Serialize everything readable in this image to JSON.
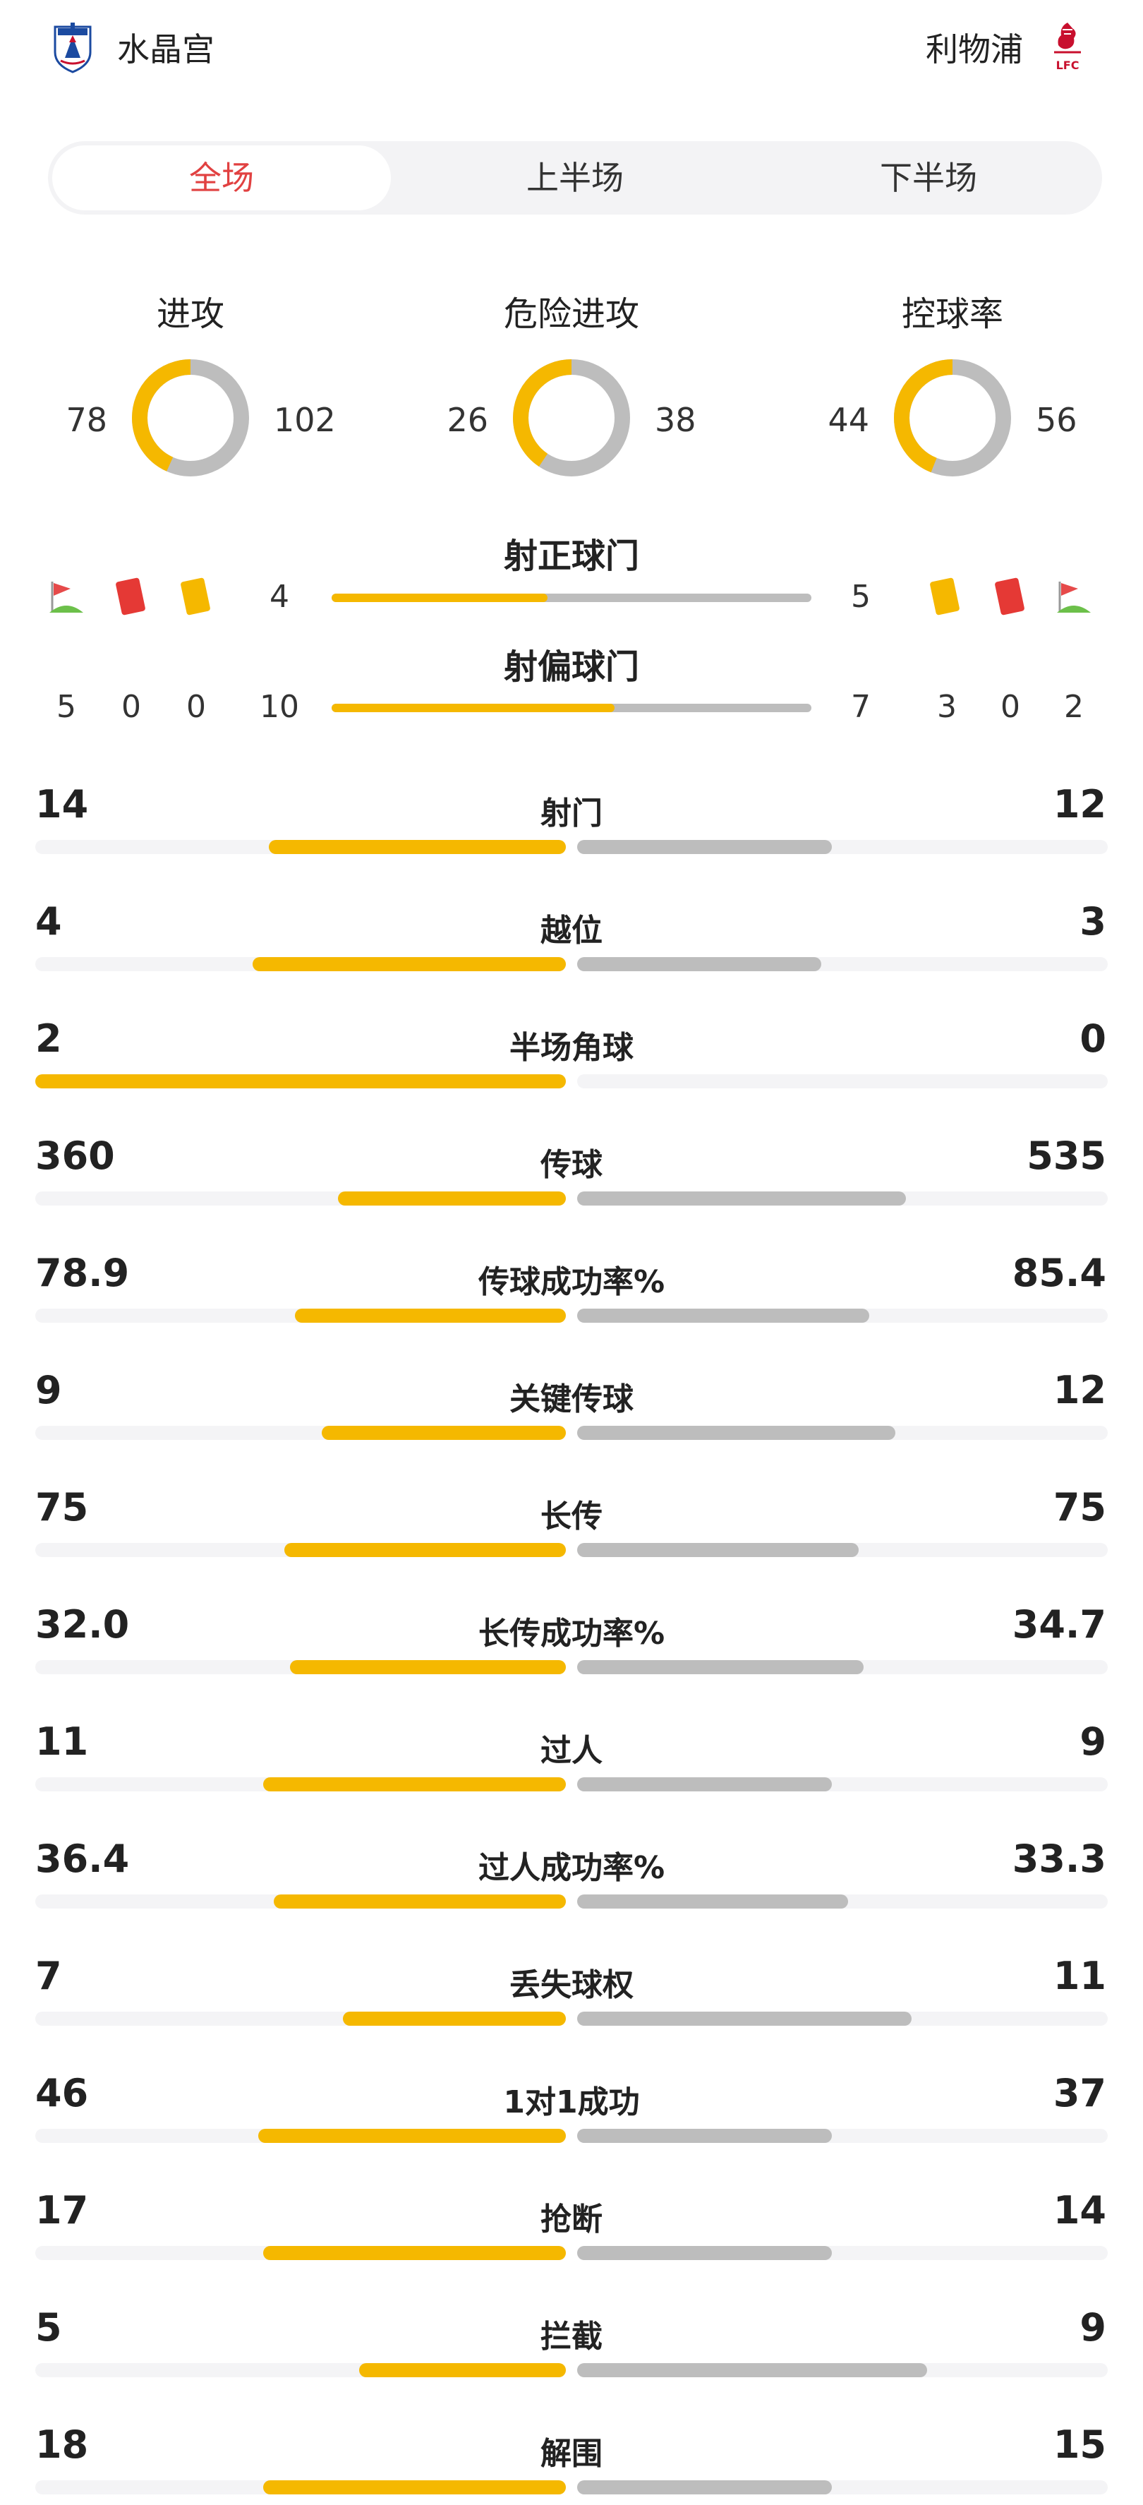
{
  "home": {
    "name": "水晶宫",
    "color": "#1b4aa0"
  },
  "away": {
    "name": "利物浦",
    "color": "#c8102e"
  },
  "tabs": [
    {
      "label": "全场",
      "active": true
    },
    {
      "label": "上半场",
      "active": false
    },
    {
      "label": "下半场",
      "active": false
    }
  ],
  "donuts": [
    {
      "title": "进攻",
      "home": "78",
      "away": "102",
      "home_share": 0.433
    },
    {
      "title": "危险进攻",
      "home": "26",
      "away": "38",
      "home_share": 0.406
    },
    {
      "title": "控球率",
      "home": "44",
      "away": "56",
      "home_share": 0.44
    }
  ],
  "shots": {
    "on_target": {
      "label": "射正球门",
      "home": "4",
      "away": "5",
      "home_share": 0.45
    },
    "off_target": {
      "label": "射偏球门",
      "home": "10",
      "away": "7",
      "home_share": 0.59
    }
  },
  "cards": {
    "home": {
      "corners": "5",
      "red": "0",
      "yellow": "0"
    },
    "away": {
      "yellow": "3",
      "red": "0",
      "corners": "2"
    }
  },
  "stats": [
    {
      "label": "射门",
      "home": "14",
      "away": "12",
      "home_frac": 0.56,
      "away_frac": 0.48
    },
    {
      "label": "越位",
      "home": "4",
      "away": "3",
      "home_frac": 0.59,
      "away_frac": 0.46
    },
    {
      "label": "半场角球",
      "home": "2",
      "away": "0",
      "home_frac": 1.0,
      "away_frac": 0.0
    },
    {
      "label": "传球",
      "home": "360",
      "away": "535",
      "home_frac": 0.43,
      "away_frac": 0.62
    },
    {
      "label": "传球成功率%",
      "home": "78.9",
      "away": "85.4",
      "home_frac": 0.51,
      "away_frac": 0.55
    },
    {
      "label": "关键传球",
      "home": "9",
      "away": "12",
      "home_frac": 0.46,
      "away_frac": 0.6
    },
    {
      "label": "长传",
      "home": "75",
      "away": "75",
      "home_frac": 0.53,
      "away_frac": 0.53
    },
    {
      "label": "长传成功率%",
      "home": "32.0",
      "away": "34.7",
      "home_frac": 0.52,
      "away_frac": 0.54
    },
    {
      "label": "过人",
      "home": "11",
      "away": "9",
      "home_frac": 0.57,
      "away_frac": 0.48
    },
    {
      "label": "过人成功率%",
      "home": "36.4",
      "away": "33.3",
      "home_frac": 0.55,
      "away_frac": 0.51
    },
    {
      "label": "丢失球权",
      "home": "7",
      "away": "11",
      "home_frac": 0.42,
      "away_frac": 0.63
    },
    {
      "label": "1对1成功",
      "home": "46",
      "away": "37",
      "home_frac": 0.58,
      "away_frac": 0.48
    },
    {
      "label": "抢断",
      "home": "17",
      "away": "14",
      "home_frac": 0.57,
      "away_frac": 0.48
    },
    {
      "label": "拦截",
      "home": "5",
      "away": "9",
      "home_frac": 0.39,
      "away_frac": 0.66
    },
    {
      "label": "解围",
      "home": "18",
      "away": "15",
      "home_frac": 0.57,
      "away_frac": 0.48
    }
  ]
}
